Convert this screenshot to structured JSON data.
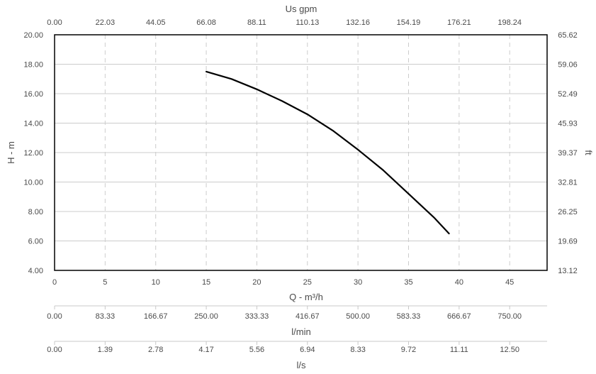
{
  "chart_data": {
    "type": "line",
    "series": [
      {
        "x": [
          15,
          17.5,
          20,
          22.5,
          25,
          27.5,
          30,
          32.5,
          35,
          37.5,
          39
        ],
        "y": [
          17.5,
          17.0,
          16.3,
          15.5,
          14.6,
          13.5,
          12.2,
          10.8,
          9.2,
          7.6,
          6.5
        ]
      }
    ],
    "top_axis": {
      "title": "Us gpm",
      "ticks": [
        "0.00",
        "22.03",
        "44.05",
        "66.08",
        "88.11",
        "110.13",
        "132.16",
        "154.19",
        "176.21",
        "198.24"
      ]
    },
    "left_axis": {
      "title": "H - m",
      "ticks": [
        "4.00",
        "6.00",
        "8.00",
        "10.00",
        "12.00",
        "14.00",
        "16.00",
        "18.00",
        "20.00"
      ],
      "ylim": [
        4,
        20
      ]
    },
    "right_axis": {
      "title": "ft",
      "ticks": [
        "13.12",
        "19.69",
        "26.25",
        "32.81",
        "39.37",
        "45.93",
        "52.49",
        "59.06",
        "65.62"
      ]
    },
    "bottom_axis": {
      "title": "Q - m³/h",
      "ticks": [
        "0",
        "5",
        "10",
        "15",
        "20",
        "25",
        "30",
        "35",
        "40",
        "45"
      ],
      "xlim": [
        0,
        48.7
      ]
    },
    "lmin_axis": {
      "title": "l/min",
      "ticks": [
        "0.00",
        "83.33",
        "166.67",
        "250.00",
        "333.33",
        "416.67",
        "500.00",
        "583.33",
        "666.67",
        "750.00"
      ]
    },
    "ls_axis": {
      "title": "l/s",
      "ticks": [
        "0.00",
        "1.39",
        "2.78",
        "4.17",
        "5.56",
        "6.94",
        "8.33",
        "9.72",
        "11.11",
        "12.50"
      ]
    },
    "grid": true,
    "colors": {
      "curve": "#000000",
      "grid": "#cccccc",
      "axis": "#000000",
      "text": "#4a4a4a"
    }
  }
}
